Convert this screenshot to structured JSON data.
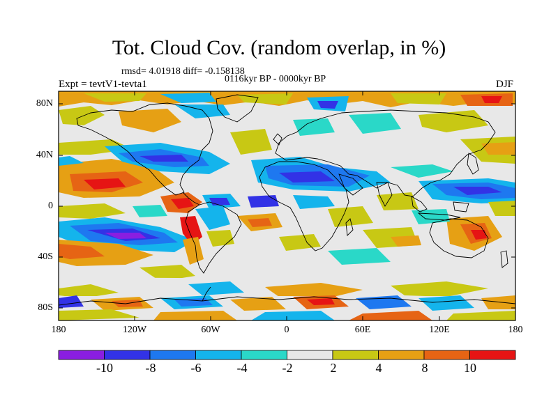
{
  "title": "Tot. Cloud Cov. (random overlap, in %)",
  "stats_line": "rmsd= 4.01918 diff= -0.158138",
  "period_line": "0116kyr BP - 0000kyr BP",
  "experiment_label": "Expt = tevtV1-tevta1",
  "season_label": "DJF",
  "y_tick_labels": [
    "80N",
    "40N",
    "0",
    "40S",
    "80S"
  ],
  "x_tick_labels": [
    "180",
    "120W",
    "60W",
    "0",
    "60E",
    "120E",
    "180"
  ],
  "colorbar": {
    "labels": [
      "-10",
      "-8",
      "-6",
      "-4",
      "-2",
      "2",
      "4",
      "8",
      "10"
    ],
    "colors": [
      "#8a1ee0",
      "#3232e6",
      "#1e78f0",
      "#14b4ec",
      "#2ad8c8",
      "#e8e8e8",
      "#c8c814",
      "#e6a014",
      "#e66414",
      "#e61414"
    ]
  },
  "colors": {
    "land_outline": "#000000",
    "background_field": "#e8e8e8"
  }
}
